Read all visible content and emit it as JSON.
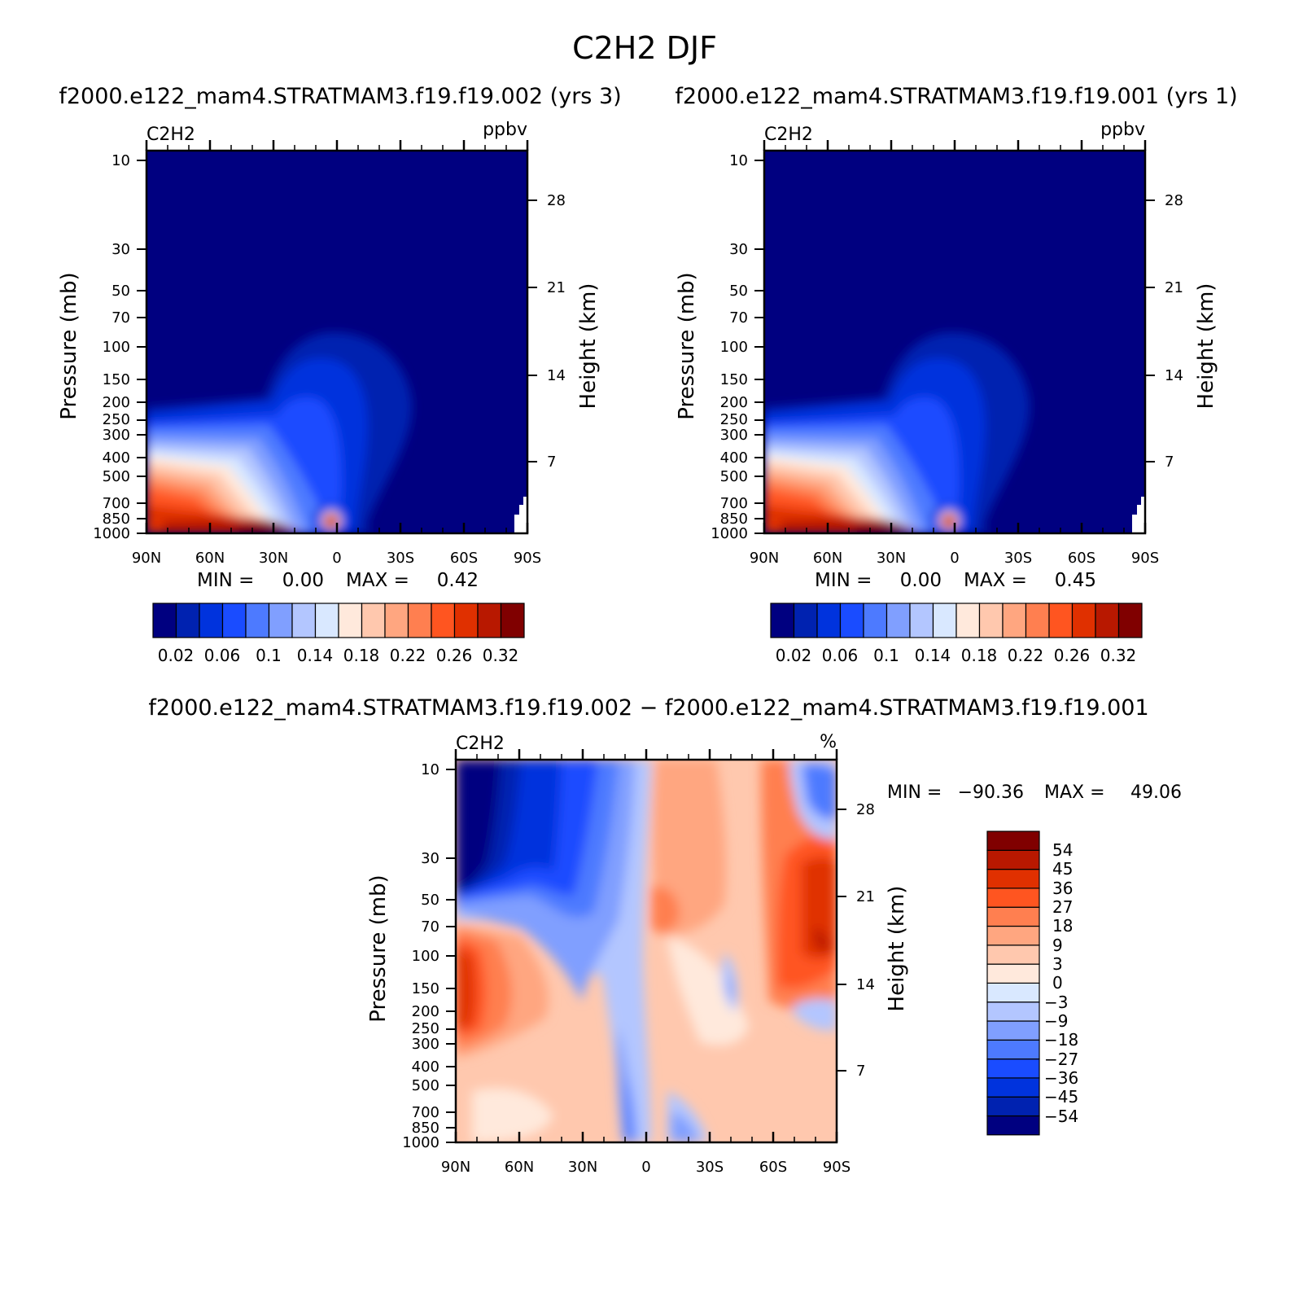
{
  "figure": {
    "title": "C2H2 DJF"
  },
  "colors": {
    "seq_palette": [
      "#000080",
      "#0022b0",
      "#0033dd",
      "#1a4cff",
      "#4d7aff",
      "#809fff",
      "#b3c6ff",
      "#d9e8ff",
      "#ffe9dc",
      "#ffc8ae",
      "#ffa680",
      "#ff7f50",
      "#ff5520",
      "#e03000",
      "#b81800",
      "#800000"
    ],
    "diff_palette": [
      "#000080",
      "#0022b0",
      "#0033dd",
      "#1a4cff",
      "#4d7aff",
      "#809fff",
      "#b3c6ff",
      "#d9e8ff",
      "#ffe9dc",
      "#ffc8ae",
      "#ffa680",
      "#ff7f50",
      "#ff5520",
      "#e03000",
      "#b81800",
      "#800000"
    ]
  },
  "chart_data": [
    {
      "type": "heatmap",
      "id": "panel-a",
      "subtitle": "f2000.e122_mam4.STRATMAM3.f19.f19.002 (yrs 3)",
      "field": "C2H2",
      "units": "ppbv",
      "ylabel": "Pressure (mb)",
      "y2label": "Height (km)",
      "xticks": [
        "90N",
        "60N",
        "30N",
        "0",
        "30S",
        "60S",
        "90S"
      ],
      "yticks": [
        "10",
        "30",
        "50",
        "70",
        "100",
        "150",
        "200",
        "250",
        "300",
        "400",
        "500",
        "700",
        "850",
        "1000"
      ],
      "y2ticks": [
        "28",
        "21",
        "14",
        "7"
      ],
      "min_label": "MIN =",
      "min_value": "0.00",
      "max_label": "MAX =",
      "max_value": "0.42",
      "levels": [
        "0.02",
        "0.06",
        "0.1",
        "0.14",
        "0.18",
        "0.22",
        "0.26",
        "0.32"
      ]
    },
    {
      "type": "heatmap",
      "id": "panel-b",
      "subtitle": "f2000.e122_mam4.STRATMAM3.f19.f19.001 (yrs 1)",
      "field": "C2H2",
      "units": "ppbv",
      "ylabel": "Pressure (mb)",
      "y2label": "Height (km)",
      "xticks": [
        "90N",
        "60N",
        "30N",
        "0",
        "30S",
        "60S",
        "90S"
      ],
      "yticks": [
        "10",
        "30",
        "50",
        "70",
        "100",
        "150",
        "200",
        "250",
        "300",
        "400",
        "500",
        "700",
        "850",
        "1000"
      ],
      "y2ticks": [
        "28",
        "21",
        "14",
        "7"
      ],
      "min_label": "MIN =",
      "min_value": "0.00",
      "max_label": "MAX =",
      "max_value": "0.45",
      "levels": [
        "0.02",
        "0.06",
        "0.1",
        "0.14",
        "0.18",
        "0.22",
        "0.26",
        "0.32"
      ]
    },
    {
      "type": "heatmap",
      "id": "panel-c",
      "subtitle": "f2000.e122_mam4.STRATMAM3.f19.f19.002 − f2000.e122_mam4.STRATMAM3.f19.f19.001",
      "field": "C2H2",
      "units": "%",
      "ylabel": "Pressure (mb)",
      "y2label": "Height (km)",
      "xticks": [
        "90N",
        "60N",
        "30N",
        "0",
        "30S",
        "60S",
        "90S"
      ],
      "yticks": [
        "10",
        "30",
        "50",
        "70",
        "100",
        "150",
        "200",
        "250",
        "300",
        "400",
        "500",
        "700",
        "850",
        "1000"
      ],
      "y2ticks": [
        "28",
        "21",
        "14",
        "7"
      ],
      "min_label": "MIN =",
      "min_value": "−90.36",
      "max_label": "MAX =",
      "max_value": "49.06",
      "levels": [
        "54",
        "45",
        "36",
        "27",
        "18",
        "9",
        "3",
        "0",
        "−3",
        "−9",
        "−18",
        "−27",
        "−36",
        "−45",
        "−54"
      ]
    }
  ]
}
